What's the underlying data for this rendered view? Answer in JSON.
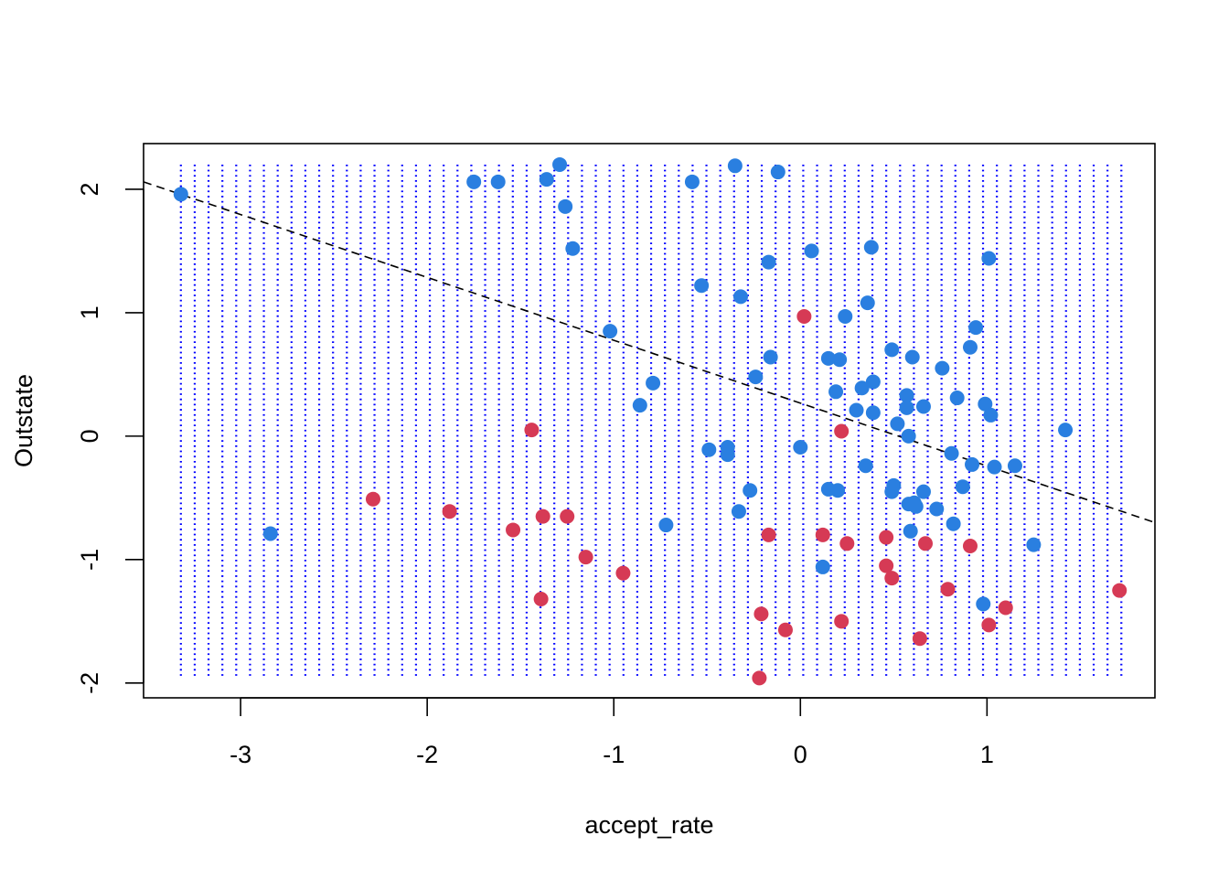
{
  "chart_data": {
    "type": "scatter",
    "title": "",
    "xlabel": "accept_rate",
    "ylabel": "Outstate",
    "xlim": [
      -3.52,
      1.9
    ],
    "ylim": [
      -2.12,
      2.37
    ],
    "x_ticks": [
      -3,
      -2,
      -1,
      0,
      1
    ],
    "y_ticks": [
      -2,
      -1,
      0,
      1,
      2
    ],
    "x_tick_labels": [
      "-3",
      "-2",
      "-1",
      "0",
      "1"
    ],
    "y_tick_labels": [
      "-2",
      "-1",
      "0",
      "1",
      "2"
    ],
    "legend": "none",
    "grid_background": {
      "x_range": [
        -3.32,
        1.72
      ],
      "y_range": [
        -1.97,
        2.2
      ],
      "n_x": 69,
      "n_y": 100,
      "color": "#0000ff"
    },
    "decision_boundary": {
      "style": "dashed",
      "color": "#000000",
      "x": [
        -3.52,
        1.9
      ],
      "y": [
        2.06,
        -0.7
      ]
    },
    "series": [
      {
        "color": "#2a7fe0",
        "points": [
          [
            -3.32,
            1.96
          ],
          [
            -2.84,
            -0.79
          ],
          [
            -1.75,
            2.06
          ],
          [
            -1.62,
            2.06
          ],
          [
            -1.36,
            2.08
          ],
          [
            -1.29,
            2.2
          ],
          [
            -1.26,
            1.86
          ],
          [
            -1.22,
            1.52
          ],
          [
            -1.02,
            0.85
          ],
          [
            -0.86,
            0.25
          ],
          [
            -0.79,
            0.43
          ],
          [
            -0.72,
            -0.72
          ],
          [
            -0.58,
            2.06
          ],
          [
            -0.53,
            1.22
          ],
          [
            -0.49,
            -0.11
          ],
          [
            -0.35,
            2.19
          ],
          [
            -0.39,
            -0.09
          ],
          [
            -0.39,
            -0.15
          ],
          [
            -0.33,
            -0.61
          ],
          [
            -0.32,
            1.13
          ],
          [
            -0.27,
            -0.44
          ],
          [
            -0.24,
            0.48
          ],
          [
            -0.17,
            1.41
          ],
          [
            -0.16,
            0.64
          ],
          [
            -0.12,
            2.14
          ],
          [
            0.0,
            -0.09
          ],
          [
            0.06,
            1.5
          ],
          [
            0.12,
            -1.06
          ],
          [
            0.15,
            0.63
          ],
          [
            0.15,
            -0.43
          ],
          [
            0.19,
            0.36
          ],
          [
            0.2,
            -0.44
          ],
          [
            0.21,
            0.62
          ],
          [
            0.24,
            0.97
          ],
          [
            0.3,
            0.21
          ],
          [
            0.33,
            0.39
          ],
          [
            0.35,
            -0.24
          ],
          [
            0.36,
            1.08
          ],
          [
            0.38,
            1.53
          ],
          [
            0.39,
            0.44
          ],
          [
            0.39,
            0.19
          ],
          [
            0.49,
            0.7
          ],
          [
            0.49,
            -0.45
          ],
          [
            0.5,
            -0.4
          ],
          [
            0.52,
            0.1
          ],
          [
            0.57,
            0.33
          ],
          [
            0.57,
            0.23
          ],
          [
            0.58,
            -0.55
          ],
          [
            0.58,
            0.0
          ],
          [
            0.59,
            -0.77
          ],
          [
            0.6,
            0.64
          ],
          [
            0.61,
            -0.54
          ],
          [
            0.62,
            -0.57
          ],
          [
            0.66,
            0.24
          ],
          [
            0.66,
            -0.45
          ],
          [
            0.73,
            -0.59
          ],
          [
            0.76,
            0.55
          ],
          [
            0.81,
            -0.14
          ],
          [
            0.82,
            -0.71
          ],
          [
            0.84,
            0.31
          ],
          [
            0.87,
            -0.41
          ],
          [
            0.91,
            0.72
          ],
          [
            0.92,
            -0.23
          ],
          [
            0.94,
            0.88
          ],
          [
            0.98,
            -1.36
          ],
          [
            0.99,
            0.26
          ],
          [
            1.01,
            1.44
          ],
          [
            1.02,
            0.17
          ],
          [
            1.04,
            -0.25
          ],
          [
            1.15,
            -0.24
          ],
          [
            1.25,
            -0.88
          ],
          [
            1.42,
            0.05
          ]
        ]
      },
      {
        "color": "#d63a55",
        "points": [
          [
            -2.29,
            -0.51
          ],
          [
            -1.88,
            -0.61
          ],
          [
            -1.54,
            -0.76
          ],
          [
            -1.44,
            0.05
          ],
          [
            -1.38,
            -0.65
          ],
          [
            -1.39,
            -1.32
          ],
          [
            -1.25,
            -0.65
          ],
          [
            -1.15,
            -0.98
          ],
          [
            -0.95,
            -1.11
          ],
          [
            -0.17,
            -0.8
          ],
          [
            -0.21,
            -1.44
          ],
          [
            -0.22,
            -1.96
          ],
          [
            -0.08,
            -1.57
          ],
          [
            0.02,
            0.97
          ],
          [
            0.12,
            -0.8
          ],
          [
            0.22,
            0.04
          ],
          [
            0.22,
            -1.5
          ],
          [
            0.25,
            -0.87
          ],
          [
            0.46,
            -0.82
          ],
          [
            0.46,
            -1.05
          ],
          [
            0.49,
            -1.15
          ],
          [
            0.64,
            -1.64
          ],
          [
            0.67,
            -0.87
          ],
          [
            0.79,
            -1.24
          ],
          [
            0.91,
            -0.89
          ],
          [
            1.01,
            -1.53
          ],
          [
            1.1,
            -1.39
          ],
          [
            1.71,
            -1.25
          ]
        ]
      }
    ]
  }
}
